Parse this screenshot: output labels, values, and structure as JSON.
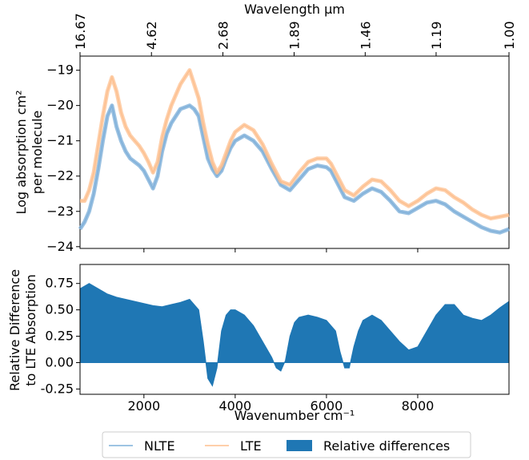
{
  "chart_data": [
    {
      "type": "line",
      "top_axis": {
        "label": "Wavelength μm",
        "ticks": [
          {
            "wavenumber": 600,
            "label": "16.67"
          },
          {
            "wavenumber": 2165,
            "label": "4.62"
          },
          {
            "wavenumber": 3731,
            "label": "2.68"
          },
          {
            "wavenumber": 5291,
            "label": "1.89"
          },
          {
            "wavenumber": 6849,
            "label": "1.46"
          },
          {
            "wavenumber": 8403,
            "label": "1.19"
          },
          {
            "wavenumber": 10000,
            "label": "1.00"
          }
        ]
      },
      "ylabel": [
        "Log absorption cm²",
        "per molecule"
      ],
      "ylim": [
        -24.05,
        -18.6
      ],
      "yticks": [
        {
          "value": -19,
          "label": "−19"
        },
        {
          "value": -20,
          "label": "−20"
        },
        {
          "value": -21,
          "label": "−21"
        },
        {
          "value": -22,
          "label": "−22"
        },
        {
          "value": -23,
          "label": "−23"
        },
        {
          "value": -24,
          "label": "−24"
        }
      ],
      "xlim": [
        600,
        10000
      ],
      "series": [
        {
          "name": "NLTE",
          "color": "#7fb0da",
          "x": [
            600,
            700,
            800,
            900,
            1000,
            1100,
            1200,
            1300,
            1400,
            1500,
            1600,
            1700,
            1800,
            1900,
            2000,
            2100,
            2200,
            2300,
            2400,
            2500,
            2600,
            2700,
            2800,
            2900,
            3000,
            3100,
            3200,
            3300,
            3400,
            3500,
            3600,
            3700,
            3800,
            3900,
            4000,
            4200,
            4400,
            4600,
            4800,
            5000,
            5200,
            5400,
            5600,
            5800,
            6000,
            6100,
            6200,
            6400,
            6600,
            6800,
            7000,
            7200,
            7400,
            7600,
            7800,
            8000,
            8200,
            8400,
            8600,
            8800,
            9000,
            9200,
            9400,
            9600,
            9800,
            10000
          ],
          "y": [
            -23.5,
            -23.3,
            -23.0,
            -22.5,
            -21.8,
            -21.0,
            -20.3,
            -20.0,
            -20.6,
            -21.0,
            -21.3,
            -21.5,
            -21.6,
            -21.7,
            -21.85,
            -22.1,
            -22.35,
            -22.0,
            -21.3,
            -20.8,
            -20.5,
            -20.3,
            -20.1,
            -20.05,
            -20.0,
            -20.1,
            -20.3,
            -20.9,
            -21.5,
            -21.8,
            -22.0,
            -21.85,
            -21.5,
            -21.2,
            -21.0,
            -20.85,
            -21.0,
            -21.3,
            -21.8,
            -22.25,
            -22.4,
            -22.1,
            -21.8,
            -21.7,
            -21.75,
            -21.85,
            -22.1,
            -22.6,
            -22.7,
            -22.5,
            -22.35,
            -22.45,
            -22.7,
            -23.0,
            -23.05,
            -22.9,
            -22.75,
            -22.7,
            -22.8,
            -23.0,
            -23.15,
            -23.3,
            -23.45,
            -23.55,
            -23.6,
            -23.5
          ]
        },
        {
          "name": "LTE",
          "color": "#fdbf8e",
          "x": [
            600,
            700,
            800,
            900,
            1000,
            1100,
            1200,
            1300,
            1400,
            1500,
            1600,
            1700,
            1800,
            1900,
            2000,
            2100,
            2200,
            2300,
            2400,
            2500,
            2600,
            2700,
            2800,
            2900,
            3000,
            3100,
            3200,
            3300,
            3400,
            3500,
            3600,
            3700,
            3800,
            3900,
            4000,
            4200,
            4400,
            4600,
            4800,
            5000,
            5200,
            5400,
            5600,
            5800,
            6000,
            6100,
            6200,
            6400,
            6600,
            6800,
            7000,
            7200,
            7400,
            7600,
            7800,
            8000,
            8200,
            8400,
            8600,
            8800,
            9000,
            9200,
            9400,
            9600,
            9800,
            10000
          ],
          "y": [
            -22.7,
            -22.7,
            -22.4,
            -21.9,
            -21.1,
            -20.3,
            -19.6,
            -19.2,
            -19.6,
            -20.2,
            -20.6,
            -20.85,
            -21.0,
            -21.15,
            -21.35,
            -21.6,
            -21.9,
            -21.6,
            -20.9,
            -20.4,
            -20.0,
            -19.7,
            -19.4,
            -19.2,
            -19.0,
            -19.4,
            -19.8,
            -20.5,
            -21.1,
            -21.6,
            -21.9,
            -21.7,
            -21.35,
            -21.0,
            -20.75,
            -20.55,
            -20.7,
            -21.1,
            -21.65,
            -22.15,
            -22.25,
            -21.9,
            -21.6,
            -21.5,
            -21.5,
            -21.65,
            -21.9,
            -22.4,
            -22.55,
            -22.3,
            -22.1,
            -22.15,
            -22.4,
            -22.7,
            -22.85,
            -22.7,
            -22.5,
            -22.35,
            -22.4,
            -22.6,
            -22.75,
            -22.95,
            -23.1,
            -23.2,
            -23.15,
            -23.1
          ]
        }
      ]
    },
    {
      "type": "area",
      "xlabel": "Wavenumber cm⁻¹",
      "ylabel": [
        "Relative Difference",
        "to LTE Absorption"
      ],
      "xlim": [
        600,
        10000
      ],
      "ylim": [
        -0.3,
        0.93
      ],
      "xticks": [
        {
          "value": 2000,
          "label": "2000"
        },
        {
          "value": 4000,
          "label": "4000"
        },
        {
          "value": 6000,
          "label": "6000"
        },
        {
          "value": 8000,
          "label": "8000"
        }
      ],
      "yticks": [
        {
          "value": 0.75,
          "label": "0.75"
        },
        {
          "value": 0.5,
          "label": "0.50"
        },
        {
          "value": 0.25,
          "label": "0.25"
        },
        {
          "value": 0.0,
          "label": "0.00"
        },
        {
          "value": -0.25,
          "label": "-0.25"
        }
      ],
      "series": [
        {
          "name": "Relative differences",
          "color": "#1f77b4",
          "x": [
            600,
            800,
            1000,
            1200,
            1400,
            1600,
            1800,
            2000,
            2200,
            2400,
            2600,
            2800,
            3000,
            3200,
            3300,
            3400,
            3500,
            3600,
            3700,
            3800,
            3900,
            4000,
            4200,
            4400,
            4600,
            4800,
            4900,
            5000,
            5100,
            5200,
            5300,
            5400,
            5600,
            5800,
            6000,
            6200,
            6300,
            6400,
            6500,
            6600,
            6700,
            6800,
            7000,
            7200,
            7400,
            7600,
            7800,
            8000,
            8200,
            8400,
            8600,
            8800,
            9000,
            9200,
            9400,
            9600,
            9800,
            10000
          ],
          "y": [
            0.7,
            0.75,
            0.7,
            0.65,
            0.62,
            0.6,
            0.58,
            0.56,
            0.54,
            0.53,
            0.55,
            0.57,
            0.6,
            0.5,
            0.2,
            -0.15,
            -0.22,
            -0.05,
            0.3,
            0.45,
            0.5,
            0.5,
            0.45,
            0.35,
            0.2,
            0.05,
            -0.05,
            -0.08,
            0.02,
            0.25,
            0.38,
            0.43,
            0.45,
            0.43,
            0.4,
            0.3,
            0.1,
            -0.05,
            -0.05,
            0.15,
            0.3,
            0.4,
            0.45,
            0.4,
            0.3,
            0.2,
            0.12,
            0.15,
            0.3,
            0.45,
            0.55,
            0.55,
            0.45,
            0.42,
            0.4,
            0.45,
            0.52,
            0.58
          ]
        }
      ]
    }
  ],
  "legend": {
    "position": "bottom-center",
    "items": [
      {
        "label": "NLTE",
        "style": "line",
        "color": "#7fb0da"
      },
      {
        "label": "LTE",
        "style": "line",
        "color": "#fdbf8e"
      },
      {
        "label": "Relative differences",
        "style": "patch",
        "color": "#1f77b4"
      }
    ]
  }
}
